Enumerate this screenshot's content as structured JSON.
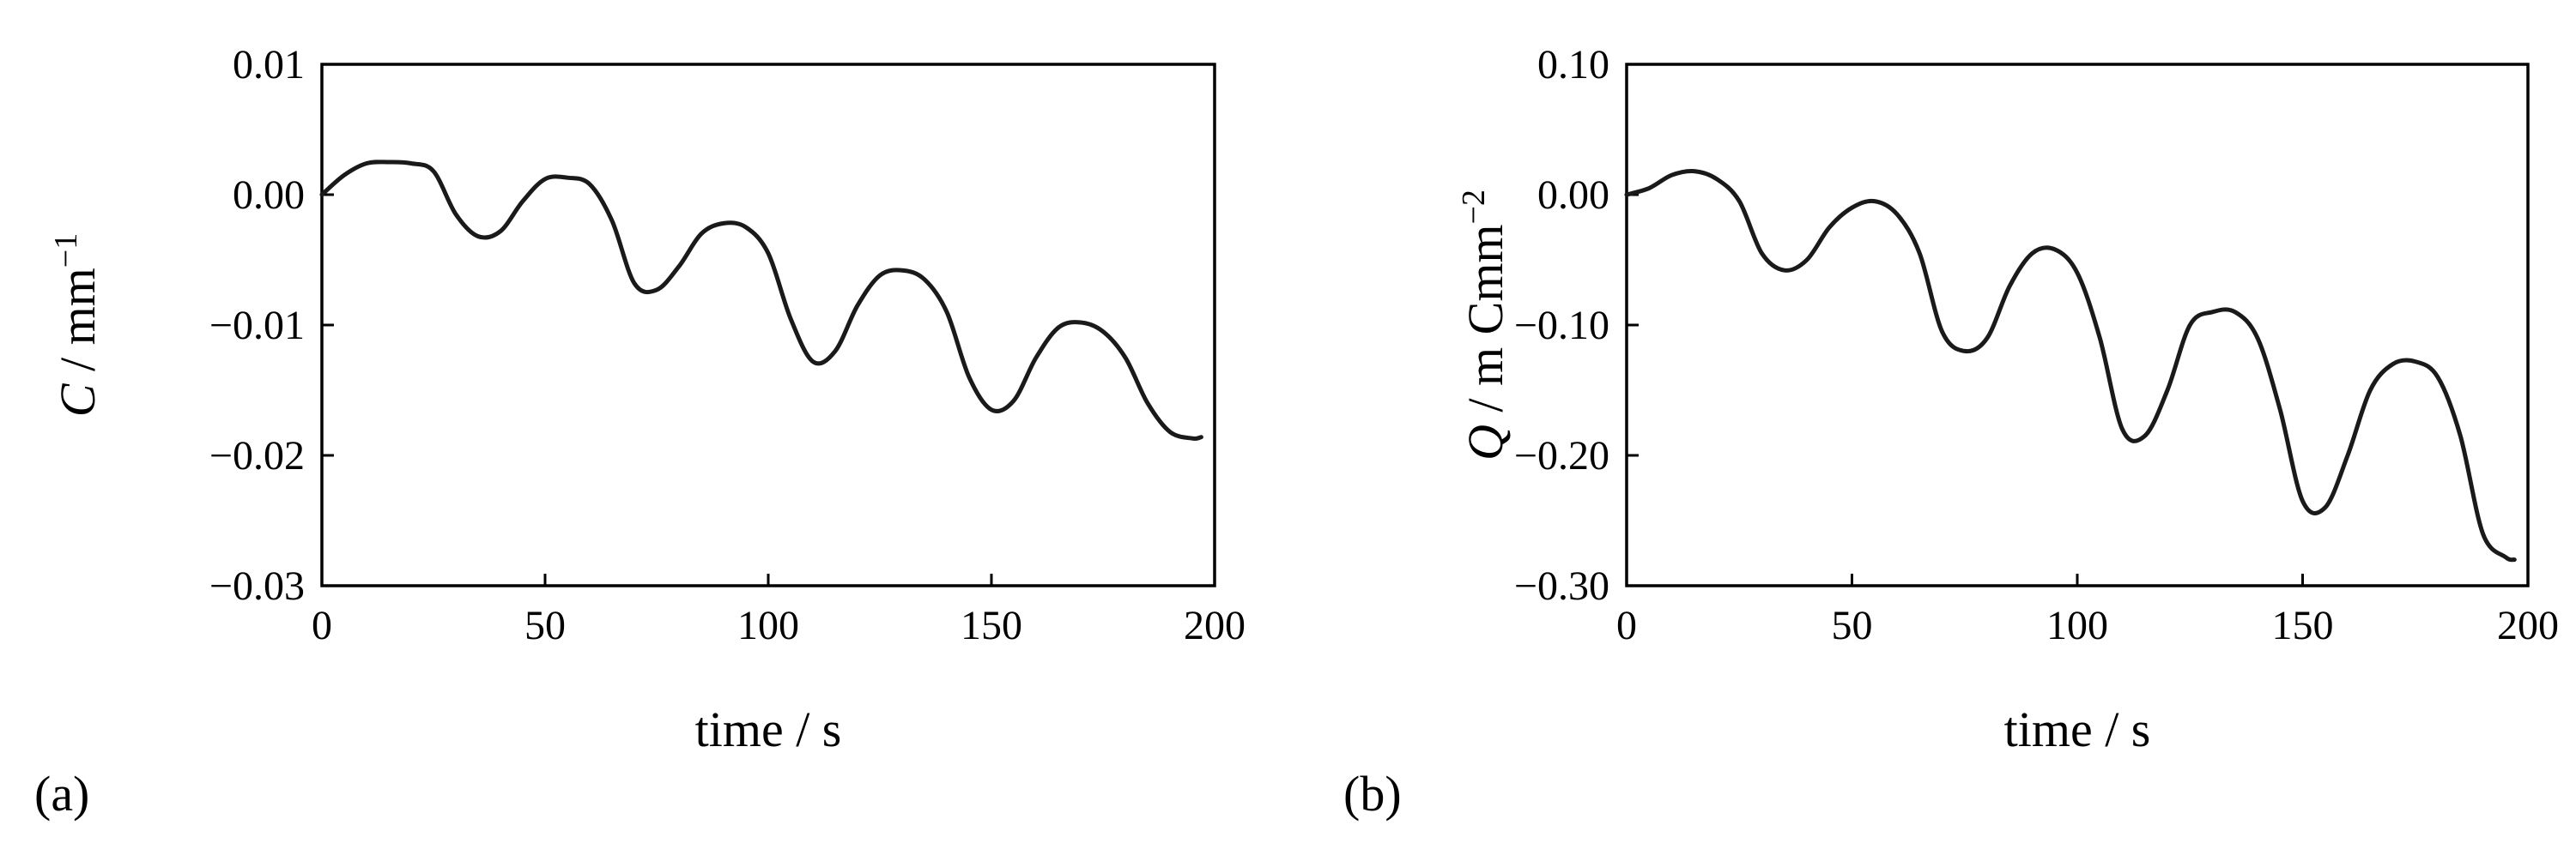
{
  "chart_data": [
    {
      "type": "line",
      "panel_label": "(a)",
      "xlabel": "time / s",
      "ylabel": {
        "symbol": "C",
        "unit": " / mm",
        "sup": "−1"
      },
      "xlim": [
        0,
        200
      ],
      "ylim": [
        -0.03,
        0.01
      ],
      "xticks": [
        0,
        50,
        100,
        150,
        200
      ],
      "xtick_labels": [
        "0",
        "50",
        "100",
        "150",
        "200"
      ],
      "yticks": [
        0.01,
        0.0,
        -0.01,
        -0.02,
        -0.03
      ],
      "ytick_labels": [
        "0.01",
        "0.00",
        "−0.01",
        "−0.02",
        "−0.03"
      ],
      "color": "#1a1a1a",
      "series": [
        {
          "x": [
            0,
            5,
            10,
            15,
            20,
            25,
            30,
            35,
            40,
            45,
            50,
            55,
            60,
            65,
            70,
            75,
            80,
            85,
            90,
            95,
            100,
            105,
            110,
            115,
            120,
            125,
            130,
            135,
            140,
            145,
            150,
            155,
            160,
            165,
            170,
            175,
            180,
            185,
            190,
            195,
            197
          ],
          "y": [
            0.0,
            0.0015,
            0.0024,
            0.0025,
            0.0024,
            0.0018,
            -0.0015,
            -0.0032,
            -0.0028,
            -0.0005,
            0.0012,
            0.0013,
            0.0008,
            -0.002,
            -0.0068,
            -0.0073,
            -0.0055,
            -0.003,
            -0.0022,
            -0.0025,
            -0.0045,
            -0.0095,
            -0.0128,
            -0.012,
            -0.0085,
            -0.0062,
            -0.0058,
            -0.0065,
            -0.009,
            -0.014,
            -0.0165,
            -0.0158,
            -0.0125,
            -0.0102,
            -0.0098,
            -0.0105,
            -0.0125,
            -0.016,
            -0.0182,
            -0.0187,
            -0.0186
          ]
        }
      ]
    },
    {
      "type": "line",
      "panel_label": "(b)",
      "xlabel": "time / s",
      "ylabel": {
        "symbol": "Q",
        "unit": " / m Cmm",
        "sup": "−2"
      },
      "xlim": [
        0,
        200
      ],
      "ylim": [
        -0.3,
        0.1
      ],
      "xticks": [
        0,
        50,
        100,
        150,
        200
      ],
      "xtick_labels": [
        "0",
        "50",
        "100",
        "150",
        "200"
      ],
      "yticks": [
        0.1,
        0.0,
        -0.1,
        -0.2,
        -0.3
      ],
      "ytick_labels": [
        "0.10",
        "0.00",
        "−0.10",
        "−0.20",
        "−0.30"
      ],
      "color": "#1a1a1a",
      "series": [
        {
          "x": [
            0,
            5,
            10,
            15,
            20,
            25,
            30,
            35,
            40,
            45,
            50,
            55,
            60,
            65,
            70,
            75,
            80,
            85,
            90,
            95,
            100,
            105,
            110,
            115,
            120,
            125,
            130,
            135,
            140,
            145,
            150,
            155,
            160,
            165,
            170,
            175,
            180,
            185,
            190,
            195,
            197
          ],
          "y": [
            0.0,
            0.005,
            0.015,
            0.018,
            0.012,
            -0.005,
            -0.045,
            -0.058,
            -0.05,
            -0.025,
            -0.01,
            -0.005,
            -0.015,
            -0.045,
            -0.105,
            -0.12,
            -0.11,
            -0.07,
            -0.045,
            -0.042,
            -0.06,
            -0.11,
            -0.18,
            -0.185,
            -0.15,
            -0.1,
            -0.09,
            -0.09,
            -0.11,
            -0.165,
            -0.235,
            -0.24,
            -0.2,
            -0.15,
            -0.13,
            -0.128,
            -0.14,
            -0.185,
            -0.26,
            -0.278,
            -0.28
          ]
        }
      ]
    }
  ]
}
